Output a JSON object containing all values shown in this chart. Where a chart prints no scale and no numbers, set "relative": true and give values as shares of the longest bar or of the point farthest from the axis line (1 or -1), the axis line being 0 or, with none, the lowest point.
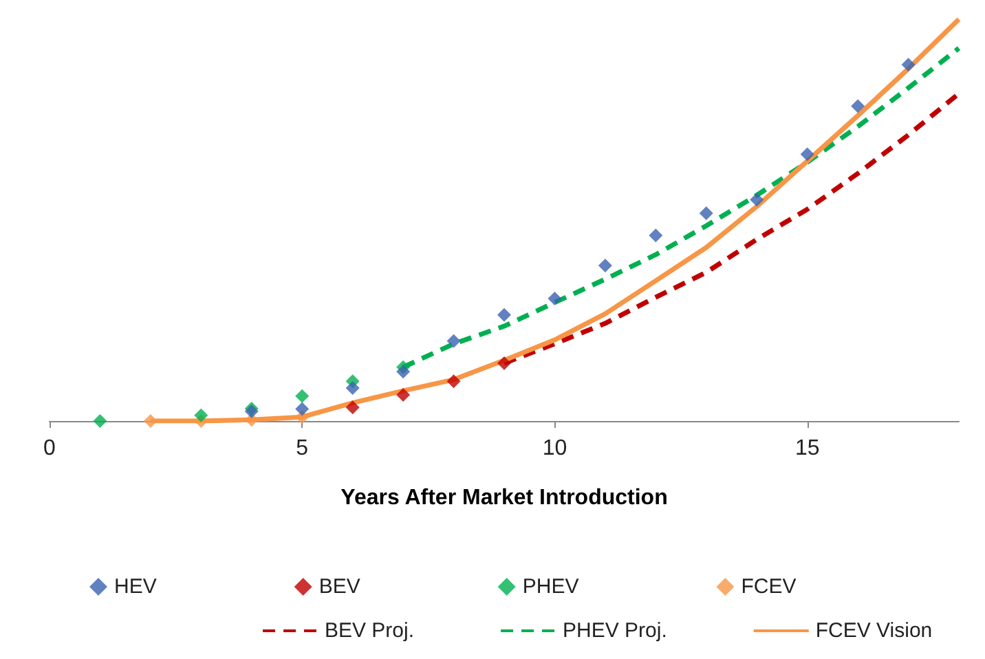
{
  "chart_data": {
    "type": "scatter",
    "xlabel": "Years After Market Introduction",
    "relative": true,
    "xlim": [
      0,
      18
    ],
    "xticks": [
      0,
      5,
      10,
      15
    ],
    "grid": false,
    "legend": "bottom",
    "marker": "diamond",
    "series": [
      {
        "name": "HEV",
        "color": "#3a62b0",
        "x": [
          4,
          5,
          6,
          7,
          8,
          9,
          10,
          11,
          12,
          13,
          14,
          15,
          16,
          17
        ],
        "values": [
          0.024,
          0.03,
          0.082,
          0.123,
          0.199,
          0.264,
          0.305,
          0.387,
          0.462,
          0.517,
          0.551,
          0.664,
          0.784,
          0.887
        ]
      },
      {
        "name": "BEV",
        "color": "#c00000",
        "x": [
          6,
          7,
          8,
          9
        ],
        "values": [
          0.034,
          0.065,
          0.099,
          0.144
        ]
      },
      {
        "name": "PHEV",
        "color": "#00b050",
        "x": [
          1,
          3,
          4,
          5,
          6,
          7
        ],
        "values": [
          0,
          0.014,
          0.031,
          0.062,
          0.099,
          0.134
        ]
      },
      {
        "name": "FCEV",
        "color": "#f79646",
        "x": [
          2,
          3,
          4,
          5
        ],
        "values": [
          0,
          0,
          0.003,
          0.01
        ]
      },
      {
        "name": "BEV Proj.",
        "type": "line",
        "marker": "none",
        "line_style": "dashed",
        "color": "#c00000",
        "x": [
          9,
          10,
          11,
          12,
          13,
          14,
          15,
          16,
          17,
          18
        ],
        "values": [
          0.144,
          0.192,
          0.243,
          0.308,
          0.37,
          0.452,
          0.527,
          0.616,
          0.712,
          0.815
        ]
      },
      {
        "name": "PHEV Proj.",
        "type": "line",
        "marker": "none",
        "line_style": "dashed",
        "color": "#00b050",
        "x": [
          7,
          8,
          9,
          10,
          11,
          12,
          13,
          14,
          15,
          16,
          17,
          18
        ],
        "values": [
          0.134,
          0.192,
          0.236,
          0.295,
          0.353,
          0.414,
          0.486,
          0.562,
          0.644,
          0.733,
          0.829,
          0.928
        ]
      },
      {
        "name": "FCEV Vision",
        "type": "line",
        "marker": "none",
        "line_style": "solid",
        "color": "#f79646",
        "x": [
          2,
          3,
          4,
          5,
          6,
          7,
          8,
          9,
          10,
          11,
          12,
          13,
          14,
          15,
          16,
          17,
          18
        ],
        "values": [
          0,
          0,
          0.003,
          0.01,
          0.045,
          0.075,
          0.103,
          0.151,
          0.202,
          0.267,
          0.349,
          0.432,
          0.534,
          0.647,
          0.76,
          0.877,
          1
        ]
      }
    ]
  }
}
